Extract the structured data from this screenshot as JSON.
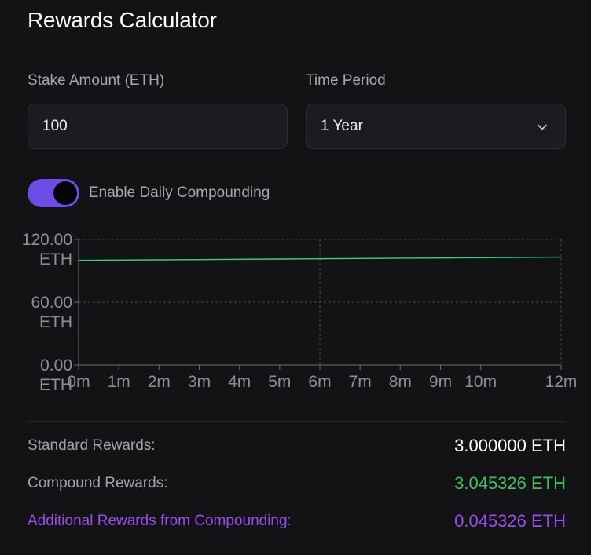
{
  "title": "Rewards Calculator",
  "stake": {
    "label": "Stake Amount (ETH)",
    "value": "100"
  },
  "period": {
    "label": "Time Period",
    "selected": "1 Year",
    "icon": "chevron-down-icon"
  },
  "compounding": {
    "label": "Enable Daily Compounding",
    "enabled": true,
    "color": "#6d4de6"
  },
  "chart_data": {
    "type": "line",
    "x_ticks": [
      "0m",
      "1m",
      "2m",
      "3m",
      "4m",
      "5m",
      "6m",
      "7m",
      "8m",
      "9m",
      "10m",
      "12m"
    ],
    "x_tick_values": [
      0,
      1,
      2,
      3,
      4,
      5,
      6,
      7,
      8,
      9,
      10,
      12
    ],
    "y_ticks": [
      {
        "value": 0,
        "line1": "0.00",
        "line2": "ETH"
      },
      {
        "value": 60,
        "line1": "60.00",
        "line2": "ETH"
      },
      {
        "value": 120,
        "line1": "120.00",
        "line2": "ETH"
      }
    ],
    "xlim": [
      0,
      12
    ],
    "ylim": [
      0,
      120
    ],
    "grid": true,
    "series": [
      {
        "color": "#3ecf7a",
        "x": [
          0,
          1,
          2,
          3,
          4,
          5,
          6,
          7,
          8,
          9,
          10,
          11,
          12
        ],
        "y": [
          100.0,
          100.25,
          100.5,
          100.75,
          101.0,
          101.25,
          101.5,
          101.76,
          102.02,
          102.27,
          102.53,
          102.79,
          103.05
        ]
      }
    ]
  },
  "results": {
    "standard_label": "Standard Rewards:",
    "standard_value": "3.000000 ETH",
    "compound_label": "Compound Rewards:",
    "compound_value": "3.045326 ETH",
    "additional_label": "Additional Rewards from Compounding:",
    "additional_value": "0.045326 ETH",
    "colors": {
      "standard": "#ffffff",
      "compound": "#3ec35f",
      "additional": "#9d4cf0"
    }
  }
}
